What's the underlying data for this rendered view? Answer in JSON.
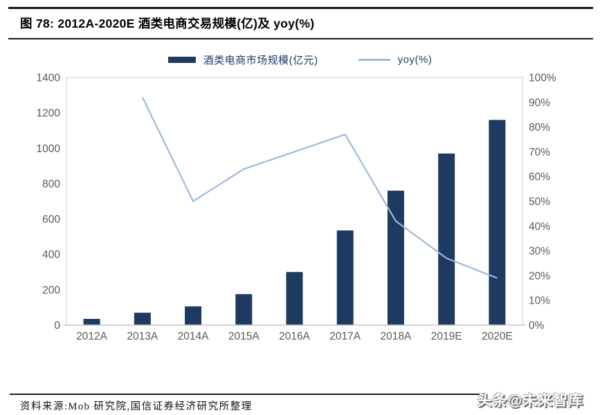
{
  "figure": {
    "title": "图 78: 2012A-2020E 酒类电商交易规模(亿)及 yoy(%)",
    "source_note": "资料来源:Mob 研究院,国信证券经济研究所整理",
    "watermark": "头条@未来智库"
  },
  "colors": {
    "bar": "#1F3A60",
    "line": "#9DB9DC",
    "axis_text": "#595959",
    "plot_border": "#D9D9D9",
    "axis_line": "#C6C6CC",
    "legend_text": "#1F3864"
  },
  "chart_data": {
    "type": "bar",
    "subtype": "combo-bar-line",
    "title": "图 78: 2012A-2020E 酒类电商交易规模(亿)及 yoy(%)",
    "categories": [
      "2012A",
      "2013A",
      "2014A",
      "2015A",
      "2016A",
      "2017A",
      "2018A",
      "2019E",
      "2020E"
    ],
    "series": [
      {
        "name": "酒类电商市场规模(亿元)",
        "type": "bar",
        "axis": "left",
        "color": "#1F3A60",
        "values": [
          35,
          70,
          106,
          175,
          300,
          535,
          760,
          970,
          1160
        ]
      },
      {
        "name": "yoy(%)",
        "type": "line",
        "axis": "right",
        "color": "#9DB9DC",
        "values": [
          null,
          92,
          50,
          63,
          70,
          77,
          42,
          27,
          19
        ]
      }
    ],
    "left_axis": {
      "min": 0,
      "max": 1400,
      "tick_step": 200,
      "tick_labels": [
        "0",
        "200",
        "400",
        "600",
        "800",
        "1000",
        "1200",
        "1400"
      ]
    },
    "right_axis": {
      "min": 0,
      "max": 100,
      "tick_step": 10,
      "tick_labels": [
        "0%",
        "10%",
        "20%",
        "30%",
        "40%",
        "50%",
        "60%",
        "70%",
        "80%",
        "90%",
        "100%"
      ]
    },
    "grid": false,
    "legend_position": "top"
  }
}
